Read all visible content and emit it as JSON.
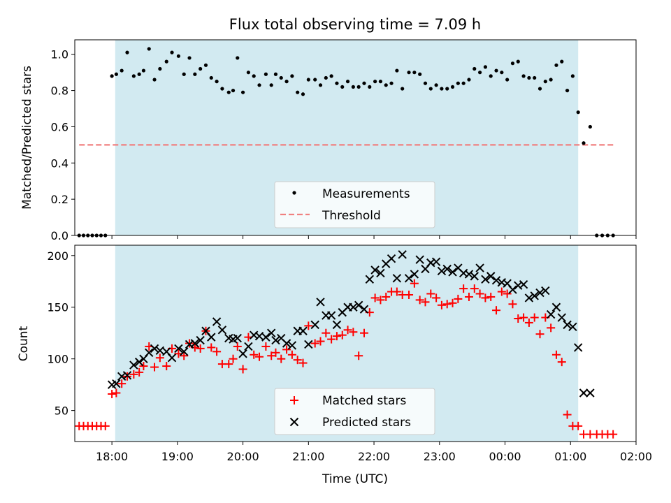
{
  "title": "Flux total observing time = 7.09 h",
  "colors": {
    "span": "#add8e6",
    "measurement": "#000000",
    "threshold": "#f08080",
    "matched": "#ff0000",
    "predicted": "#000000"
  },
  "chart_data": [
    {
      "type": "scatter",
      "panel": "top",
      "title": "Flux total observing time = 7.09 h",
      "xlabel": "",
      "ylabel": "Matched/Predicted stars",
      "xlim": [
        "17:26",
        "02:00"
      ],
      "ylim": [
        0,
        1.08
      ],
      "yticks": [
        "0.0",
        "0.2",
        "0.4",
        "0.6",
        "0.8",
        "1.0"
      ],
      "shaded_span": [
        "18:03",
        "01:07"
      ],
      "legend": {
        "placement": "lower-center",
        "entries": [
          "Measurements",
          "Threshold"
        ]
      },
      "threshold": {
        "name": "Threshold",
        "y": 0.5,
        "x_range": [
          "17:30",
          "01:40"
        ]
      },
      "series": [
        {
          "name": "Measurements",
          "x": [
            "17:30",
            "17:34",
            "17:38",
            "17:42",
            "17:46",
            "17:50",
            "17:54",
            "18:00",
            "18:04",
            "18:09",
            "18:14",
            "18:20",
            "18:25",
            "18:29",
            "18:34",
            "18:39",
            "18:44",
            "18:50",
            "18:55",
            "19:01",
            "19:06",
            "19:11",
            "19:16",
            "19:21",
            "19:26",
            "19:31",
            "19:36",
            "19:41",
            "19:47",
            "19:51",
            "19:55",
            "20:00",
            "20:05",
            "20:10",
            "20:15",
            "20:21",
            "20:26",
            "20:30",
            "20:35",
            "20:40",
            "20:45",
            "20:50",
            "20:55",
            "21:00",
            "21:06",
            "21:11",
            "21:16",
            "21:21",
            "21:26",
            "21:31",
            "21:36",
            "21:41",
            "21:46",
            "21:51",
            "21:56",
            "22:01",
            "22:06",
            "22:11",
            "22:16",
            "22:21",
            "22:26",
            "22:32",
            "22:37",
            "22:42",
            "22:47",
            "22:52",
            "22:57",
            "23:02",
            "23:07",
            "23:12",
            "23:17",
            "23:22",
            "23:27",
            "23:32",
            "23:37",
            "23:42",
            "23:47",
            "23:52",
            "23:57",
            "00:02",
            "00:07",
            "00:12",
            "00:17",
            "00:22",
            "00:27",
            "00:32",
            "00:37",
            "00:42",
            "00:47",
            "00:52",
            "00:57",
            "01:02",
            "01:07",
            "01:12",
            "01:18",
            "01:24",
            "01:29",
            "01:34",
            "01:39"
          ],
          "values": [
            0,
            0,
            0,
            0,
            0,
            0,
            0,
            0.88,
            0.89,
            0.91,
            1.01,
            0.88,
            0.89,
            0.91,
            1.03,
            0.86,
            0.92,
            0.96,
            1.01,
            0.99,
            0.89,
            0.98,
            0.89,
            0.92,
            0.94,
            0.87,
            0.85,
            0.81,
            0.79,
            0.8,
            0.98,
            0.79,
            0.9,
            0.88,
            0.83,
            0.89,
            0.83,
            0.89,
            0.87,
            0.85,
            0.88,
            0.79,
            0.78,
            0.86,
            0.86,
            0.83,
            0.87,
            0.88,
            0.84,
            0.82,
            0.85,
            0.82,
            0.82,
            0.84,
            0.82,
            0.85,
            0.85,
            0.83,
            0.84,
            0.91,
            0.81,
            0.9,
            0.9,
            0.89,
            0.84,
            0.81,
            0.83,
            0.81,
            0.81,
            0.82,
            0.84,
            0.84,
            0.86,
            0.92,
            0.9,
            0.93,
            0.88,
            0.91,
            0.9,
            0.86,
            0.95,
            0.96,
            0.88,
            0.87,
            0.87,
            0.81,
            0.85,
            0.86,
            0.94,
            0.96,
            0.8,
            0.88,
            0.68,
            0.51,
            0.6,
            0,
            0,
            0,
            0
          ]
        }
      ]
    },
    {
      "type": "scatter",
      "panel": "bottom",
      "title": "",
      "xlabel": "Time (UTC)",
      "ylabel": "Count",
      "xlim": [
        "17:26",
        "02:00"
      ],
      "xticks": [
        "18:00",
        "19:00",
        "20:00",
        "21:00",
        "22:00",
        "23:00",
        "00:00",
        "01:00",
        "02:00"
      ],
      "ylim": [
        20,
        210
      ],
      "yticks": [
        "50",
        "100",
        "150",
        "200"
      ],
      "shaded_span": [
        "18:03",
        "01:07"
      ],
      "legend": {
        "placement": "lower-center",
        "entries": [
          "Matched stars",
          "Predicted stars"
        ]
      },
      "series": [
        {
          "name": "Matched stars",
          "marker": "plus",
          "x": [
            "17:30",
            "17:34",
            "17:38",
            "17:42",
            "17:46",
            "17:50",
            "17:54",
            "18:00",
            "18:04",
            "18:09",
            "18:14",
            "18:20",
            "18:25",
            "18:29",
            "18:34",
            "18:39",
            "18:44",
            "18:50",
            "18:55",
            "19:01",
            "19:06",
            "19:11",
            "19:16",
            "19:21",
            "19:26",
            "19:31",
            "19:36",
            "19:41",
            "19:47",
            "19:51",
            "19:55",
            "20:00",
            "20:05",
            "20:10",
            "20:15",
            "20:21",
            "20:26",
            "20:30",
            "20:35",
            "20:40",
            "20:45",
            "20:50",
            "20:55",
            "21:00",
            "21:06",
            "21:11",
            "21:16",
            "21:21",
            "21:26",
            "21:31",
            "21:36",
            "21:41",
            "21:46",
            "21:51",
            "21:56",
            "22:01",
            "22:06",
            "22:11",
            "22:16",
            "22:21",
            "22:26",
            "22:32",
            "22:37",
            "22:42",
            "22:47",
            "22:52",
            "22:57",
            "23:02",
            "23:07",
            "23:12",
            "23:17",
            "23:22",
            "23:27",
            "23:32",
            "23:37",
            "23:42",
            "23:47",
            "23:52",
            "23:57",
            "00:02",
            "00:07",
            "00:12",
            "00:17",
            "00:22",
            "00:27",
            "00:32",
            "00:37",
            "00:42",
            "00:47",
            "00:52",
            "00:57",
            "01:02",
            "01:07",
            "01:12",
            "01:18",
            "01:24",
            "01:29",
            "01:34",
            "01:39"
          ],
          "values": [
            35,
            35,
            35,
            35,
            35,
            35,
            35,
            66,
            67,
            76,
            83,
            85,
            87,
            93,
            112,
            92,
            101,
            93,
            110,
            105,
            103,
            115,
            111,
            110,
            127,
            111,
            107,
            95,
            95,
            100,
            112,
            90,
            121,
            104,
            102,
            112,
            103,
            106,
            100,
            109,
            104,
            99,
            96,
            132,
            115,
            117,
            125,
            119,
            122,
            123,
            128,
            126,
            103,
            125,
            145,
            159,
            157,
            160,
            165,
            165,
            162,
            162,
            173,
            157,
            155,
            163,
            159,
            152,
            153,
            154,
            158,
            168,
            160,
            168,
            163,
            159,
            160,
            147,
            165,
            163,
            153,
            139,
            140,
            135,
            140,
            124,
            140,
            130,
            104,
            97,
            46,
            35,
            35,
            27,
            27,
            27,
            27,
            27,
            27
          ],
          "note_value_count": "99"
        },
        {
          "name": "Predicted stars",
          "marker": "x",
          "x": [
            "18:00",
            "18:04",
            "18:09",
            "18:14",
            "18:20",
            "18:25",
            "18:29",
            "18:34",
            "18:39",
            "18:44",
            "18:50",
            "18:55",
            "19:01",
            "19:06",
            "19:11",
            "19:16",
            "19:21",
            "19:26",
            "19:31",
            "19:36",
            "19:41",
            "19:47",
            "19:51",
            "19:55",
            "20:00",
            "20:05",
            "20:10",
            "20:15",
            "20:21",
            "20:26",
            "20:30",
            "20:35",
            "20:40",
            "20:45",
            "20:50",
            "20:55",
            "21:00",
            "21:06",
            "21:11",
            "21:16",
            "21:21",
            "21:26",
            "21:31",
            "21:36",
            "21:41",
            "21:46",
            "21:51",
            "21:56",
            "22:01",
            "22:06",
            "22:11",
            "22:16",
            "22:21",
            "22:26",
            "22:32",
            "22:37",
            "22:42",
            "22:47",
            "22:52",
            "22:57",
            "23:02",
            "23:07",
            "23:12",
            "23:17",
            "23:22",
            "23:27",
            "23:32",
            "23:37",
            "23:42",
            "23:47",
            "23:52",
            "23:57",
            "00:02",
            "00:07",
            "00:12",
            "00:17",
            "00:22",
            "00:27",
            "00:32",
            "00:37",
            "00:42",
            "00:47",
            "00:52",
            "00:57",
            "01:02",
            "01:07",
            "01:12",
            "01:18"
          ],
          "values": [
            75,
            76,
            83,
            84,
            94,
            97,
            100,
            106,
            110,
            108,
            107,
            101,
            110,
            107,
            114,
            115,
            118,
            127,
            121,
            136,
            128,
            120,
            119,
            120,
            105,
            112,
            123,
            122,
            121,
            125,
            118,
            120,
            115,
            113,
            127,
            127,
            114,
            133,
            155,
            142,
            142,
            133,
            145,
            150,
            150,
            152,
            148,
            177,
            186,
            183,
            192,
            197,
            178,
            201,
            178,
            182,
            196,
            187,
            193,
            194,
            185,
            187,
            184,
            188,
            183,
            182,
            180,
            188,
            177,
            180,
            176,
            174,
            173,
            167,
            171,
            172,
            159,
            161,
            164,
            166,
            143,
            150,
            140,
            133,
            131,
            111,
            67,
            67
          ]
        }
      ]
    }
  ]
}
